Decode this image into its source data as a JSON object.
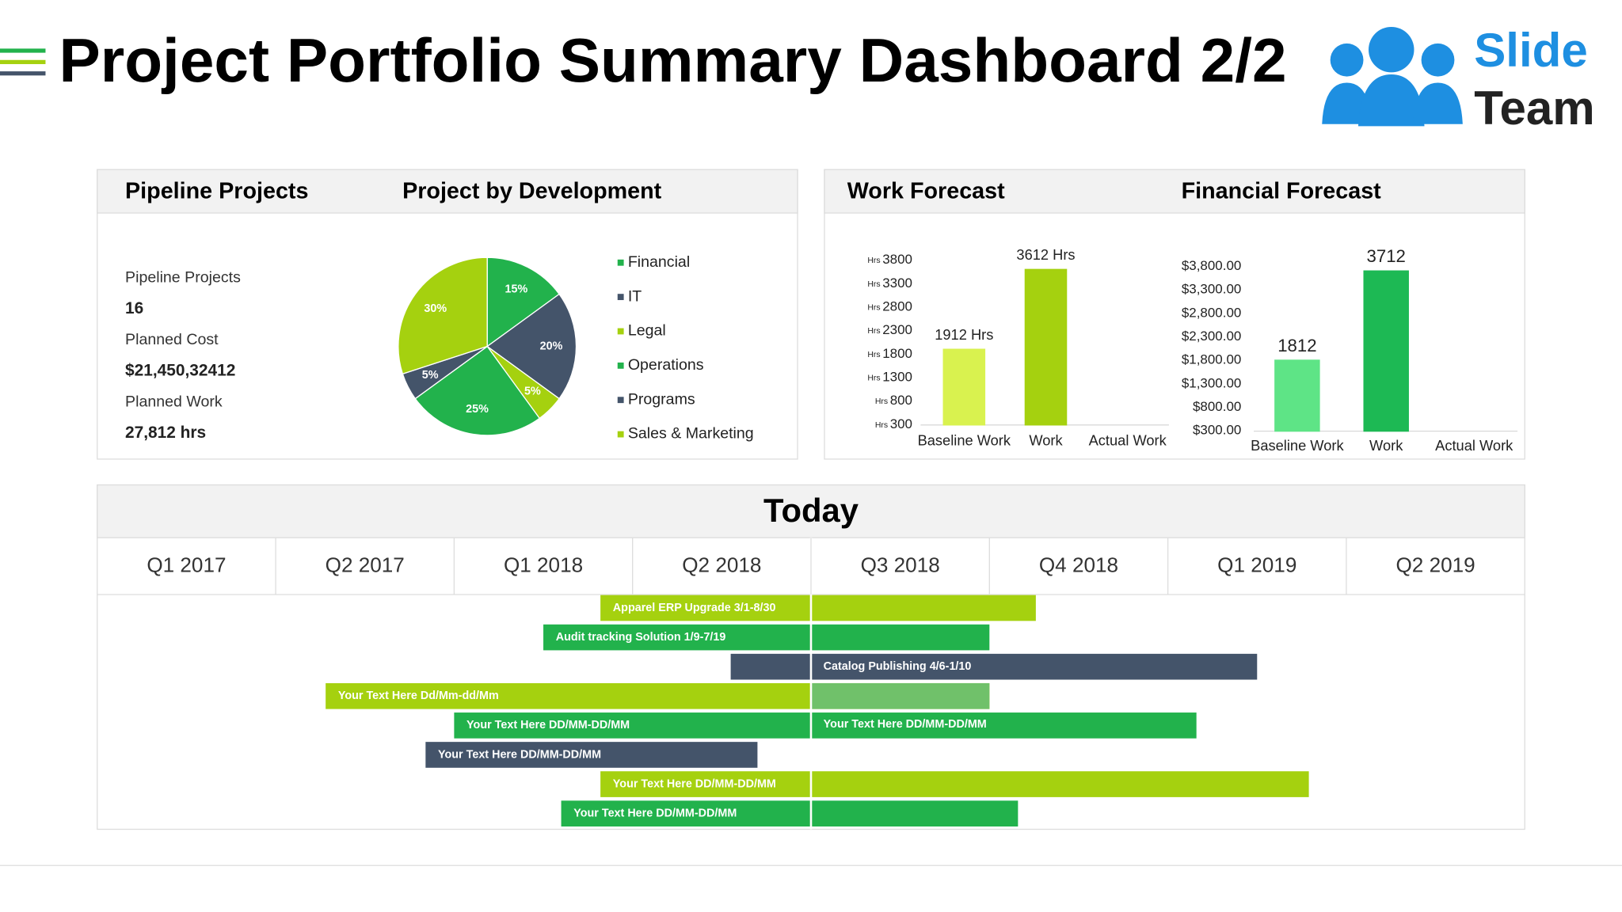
{
  "title": "Project Portfolio Summary Dashboard 2/2",
  "logo": {
    "line1": "Slide",
    "line2": "Team"
  },
  "pipeline": {
    "heading": "Pipeline Projects",
    "items": [
      {
        "label": "Pipeline Projects",
        "value": "16"
      },
      {
        "label": "Planned Cost",
        "value": "$21,450,32412"
      },
      {
        "label": "Planned Work",
        "value": "27,812 hrs"
      }
    ]
  },
  "development": {
    "type": "pie",
    "heading": "Project by Development",
    "categories": [
      "Financial",
      "IT",
      "Legal",
      "Operations",
      "Programs",
      "Sales & Marketing"
    ],
    "values": [
      15,
      20,
      5,
      25,
      5,
      30
    ],
    "value_labels": [
      "15%",
      "20%",
      "5%",
      "25%",
      "5%",
      "30%"
    ],
    "colors": [
      "#22b24c",
      "#44546a",
      "#a5d10f",
      "#22b24c",
      "#44546a",
      "#a5d10f"
    ]
  },
  "work_forecast": {
    "type": "bar",
    "heading": "Work Forecast",
    "tick_unit": "Hrs",
    "categories": [
      "Baseline Work",
      "Work",
      "Actual Work"
    ],
    "values": [
      1912,
      3612,
      300
    ],
    "value_labels": [
      "1912 Hrs",
      "3612 Hrs",
      null
    ],
    "colors": [
      "#d9f24f",
      "#a5d10f",
      "#a5d10f"
    ],
    "ylim": [
      300,
      3800
    ],
    "yticks": [
      3800,
      3300,
      2800,
      2300,
      1800,
      1300,
      800,
      300
    ]
  },
  "financial_forecast": {
    "type": "bar",
    "heading": "Financial Forecast",
    "categories": [
      "Baseline Work",
      "Work",
      "Actual Work"
    ],
    "values": [
      1812,
      3712,
      300
    ],
    "value_labels": [
      "1812",
      "3712",
      null
    ],
    "colors": [
      "#5ee486",
      "#1db954",
      "#1db954"
    ],
    "ylim": [
      300,
      3800
    ],
    "yticks": [
      {
        "value": 3800,
        "label": "$3,800.00"
      },
      {
        "value": 3300,
        "label": "$3,300.00"
      },
      {
        "value": 2800,
        "label": "$2,800.00"
      },
      {
        "value": 2300,
        "label": "$2,300.00"
      },
      {
        "value": 1800,
        "label": "$1,800.00"
      },
      {
        "value": 1300,
        "label": "$1,300.00"
      },
      {
        "value": 800,
        "label": "$800.00"
      },
      {
        "value": 300,
        "label": "$300.00"
      }
    ]
  },
  "timeline": {
    "heading": "Today",
    "today": 4,
    "quarters": [
      "Q1 2017",
      "Q2 2017",
      "Q1 2018",
      "Q2 2018",
      "Q3 2018",
      "Q4 2018",
      "Q1 2019",
      "Q2 2019"
    ],
    "bars": [
      {
        "label": "Apparel ERP Upgrade 3/1-8/30",
        "start": 2.82,
        "end": 5.26,
        "color": "#a5d10f"
      },
      {
        "label": "Audit tracking Solution 1/9-7/19",
        "start": 2.5,
        "end": 5.0,
        "color": "#22b24c"
      },
      {
        "label": "Catalog Publishing 4/6-1/10",
        "start": 3.55,
        "end": 6.5,
        "color": "#44546a",
        "label_after_today": true
      },
      {
        "label": "Your Text Here Dd/Mm-dd/Mm",
        "start": 1.28,
        "end": 5.0,
        "color": "#a5d10f",
        "future_color": "#70c16a"
      },
      {
        "label": "Your Text Here DD/MM-DD/MM",
        "label2": "Your Text Here DD/MM-DD/MM",
        "start": 2.0,
        "end": 6.16,
        "color": "#22b24c"
      },
      {
        "label": "Your Text Here DD/MM-DD/MM",
        "start": 1.84,
        "end": 3.7,
        "color": "#44546a"
      },
      {
        "label": "Your Text Here DD/MM-DD/MM",
        "start": 2.82,
        "end": 6.79,
        "color": "#a5d10f"
      },
      {
        "label": "Your Text Here DD/MM-DD/MM",
        "start": 2.6,
        "end": 5.16,
        "color": "#22b24c"
      }
    ]
  }
}
